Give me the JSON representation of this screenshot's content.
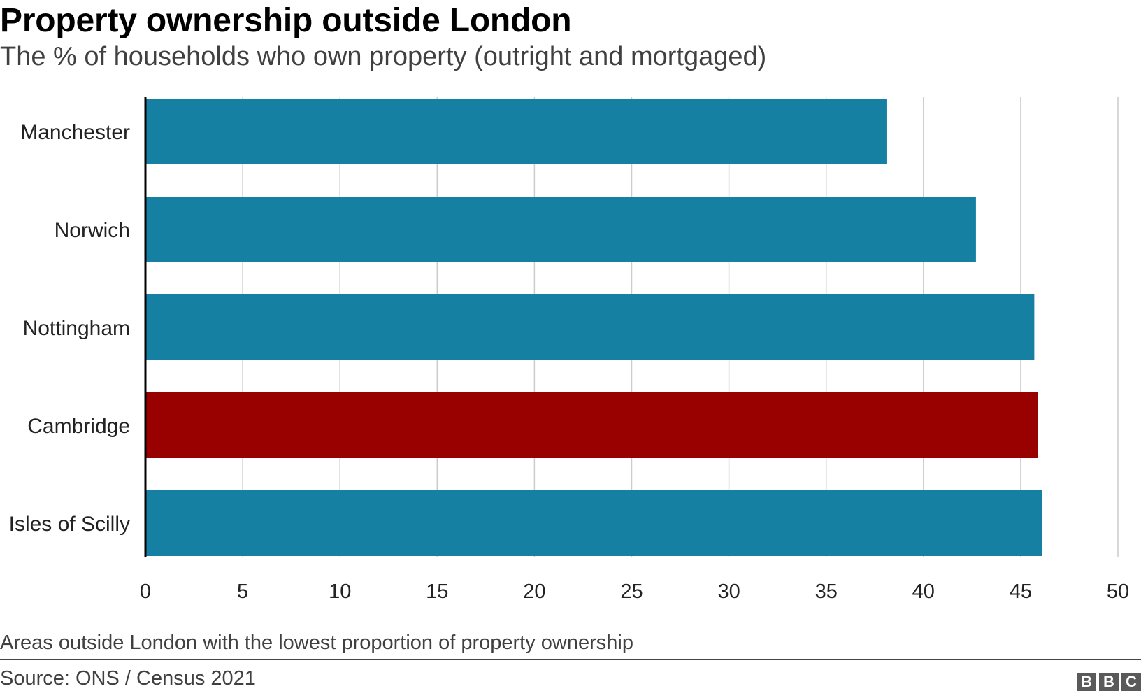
{
  "header": {
    "title": "Property ownership outside London",
    "subtitle": "The % of households who own property (outright and mortgaged)"
  },
  "footer": {
    "note": "Areas outside London with the lowest proportion of property ownership",
    "source": "Source: ONS / Census 2021",
    "logo_letters": [
      "B",
      "B",
      "C"
    ]
  },
  "colors": {
    "default_bar": "#1580a2",
    "highlight_bar": "#990000",
    "grid": "#cccccc",
    "axis": "#000000"
  },
  "chart_data": {
    "type": "bar",
    "orientation": "horizontal",
    "title": "Property ownership outside London",
    "subtitle": "The % of households who own property (outright and mortgaged)",
    "xlabel": "",
    "ylabel": "",
    "xlim": [
      0,
      50
    ],
    "xticks": [
      0,
      5,
      10,
      15,
      20,
      25,
      30,
      35,
      40,
      45,
      50
    ],
    "grid": true,
    "highlight": "Cambridge",
    "categories": [
      "Manchester",
      "Norwich",
      "Nottingham",
      "Cambridge",
      "Isles of Scilly"
    ],
    "values": [
      38.1,
      42.7,
      45.7,
      45.9,
      46.1
    ]
  }
}
